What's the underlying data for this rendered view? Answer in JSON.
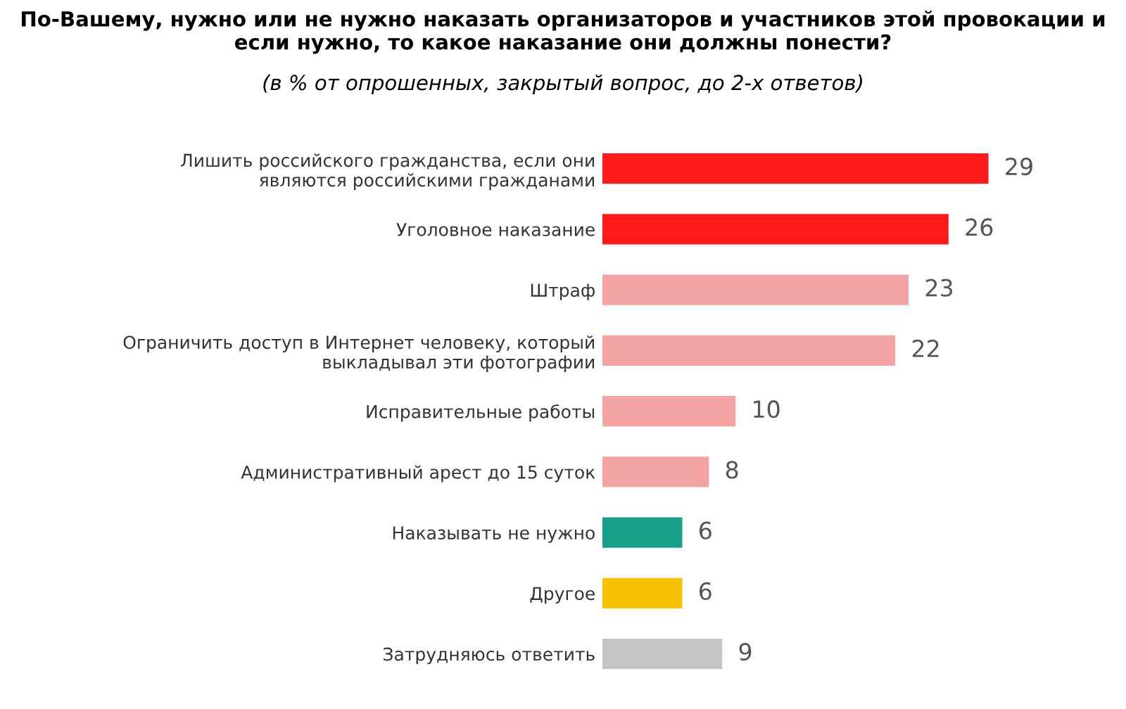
{
  "chart_data": {
    "type": "bar",
    "orientation": "horizontal",
    "title": "По-Вашему, нужно или не нужно наказать организаторов и участников этой провокации и если нужно, то какое наказание они должны понести?",
    "subtitle": "(в % от опрошенных, закрытый вопрос, до 2-х ответов)",
    "categories": [
      "Лишить российского гражданства, если они\nявляются российскими гражданами",
      "Уголовное наказание",
      "Штраф",
      "Ограничить доступ в Интернет человеку, который\nвыкладывал эти фотографии",
      "Исправительные работы",
      "Административный арест до 15 суток",
      "Наказывать не нужно",
      "Другое",
      "Затрудняюсь ответить"
    ],
    "values": [
      29,
      26,
      23,
      22,
      10,
      8,
      6,
      6,
      9
    ],
    "colors": [
      "#ff1a1a",
      "#ff1a1a",
      "#f4a3a3",
      "#f4a3a3",
      "#f4a3a3",
      "#f4a3a3",
      "#17a085",
      "#f7c300",
      "#c4c4c4"
    ],
    "data_labels": true,
    "tick_labels": "y",
    "grid": false,
    "legend": false
  }
}
